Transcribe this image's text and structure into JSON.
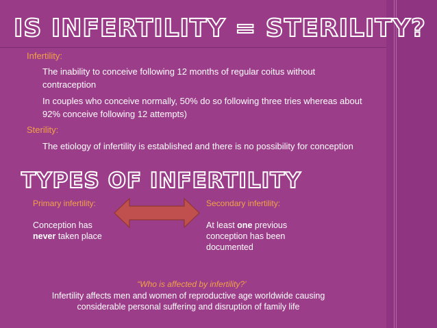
{
  "slide": {
    "title": "IS INFERTILITY = STERILITY?",
    "infertility_heading": "Infertility:",
    "infertility_point1": "The inability to conceive following 12 months of regular coitus without contraception",
    "infertility_point2": "In couples who conceive normally, 50% do so following three tries whereas about 92% conceive following 12 attempts)",
    "sterility_heading": "Sterility:",
    "sterility_point1": "The etiology of infertility is established and there is no possibility for conception",
    "subtitle": "TYPES OF INFERTILITY",
    "primary": {
      "label": "Primary infertility:",
      "text_before": "Conception has",
      "emphasis": "never",
      "text_after": " taken place"
    },
    "secondary": {
      "label": "Secondary infertility:",
      "text_before": "At least ",
      "emphasis": "one",
      "text_after": " previous conception has been documented"
    },
    "question": "“Who is affected by infertility?’",
    "statement": "Infertility affects men and women of reproductive age worldwide causing considerable personal suffering and disruption of family life"
  },
  "colors": {
    "background": "#9c3d8a",
    "accent": "#f2a247",
    "arrow_fill": "#c0504d",
    "text": "#ffffff"
  }
}
